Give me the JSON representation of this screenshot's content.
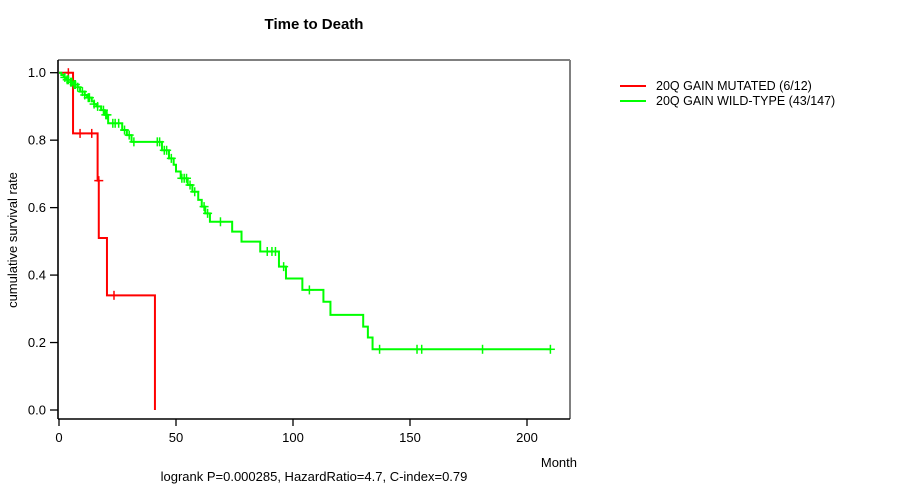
{
  "chart_data": {
    "type": "line",
    "subtype": "kaplan-meier-step-curve",
    "title": "Time to Death",
    "xlabel": "Month",
    "ylabel": "cumulative survival rate",
    "footer": "logrank P=0.000285, HazardRatio=4.7, C-index=0.79",
    "xlim": [
      0,
      218
    ],
    "ylim": [
      0.0,
      1.0
    ],
    "x_ticks": [
      0,
      50,
      100,
      150,
      200
    ],
    "y_ticks": [
      0.0,
      0.2,
      0.4,
      0.6,
      0.8,
      1.0
    ],
    "grid": false,
    "legend_position": "right-outside",
    "frame": {
      "top_right_color": "#808080",
      "bottom_left_color": "#000000"
    },
    "series": [
      {
        "name": "20Q GAIN MUTATED (6/12)",
        "color": "#ff0000",
        "end_month": 41,
        "steps": [
          [
            0,
            1.0
          ],
          [
            6,
            1.0
          ],
          [
            6,
            0.82
          ],
          [
            16.5,
            0.82
          ],
          [
            16.5,
            0.68
          ],
          [
            17,
            0.68
          ],
          [
            17,
            0.51
          ],
          [
            20.5,
            0.51
          ],
          [
            20.5,
            0.34
          ],
          [
            41,
            0.34
          ],
          [
            41,
            0.0
          ]
        ],
        "censors": [
          [
            4,
            1.0
          ],
          [
            9,
            0.82
          ],
          [
            14,
            0.82
          ],
          [
            17,
            0.68
          ],
          [
            23.5,
            0.34
          ]
        ]
      },
      {
        "name": "20Q GAIN WILD-TYPE (43/147)",
        "color": "#00ff00",
        "end_month": 210,
        "steps": [
          [
            0,
            1.0
          ],
          [
            1,
            0.993
          ],
          [
            2,
            0.986
          ],
          [
            3,
            0.979
          ],
          [
            5,
            0.972
          ],
          [
            6,
            0.965
          ],
          [
            8,
            0.957
          ],
          [
            9,
            0.944
          ],
          [
            11,
            0.934
          ],
          [
            12,
            0.926
          ],
          [
            14,
            0.915
          ],
          [
            15,
            0.907
          ],
          [
            16,
            0.9
          ],
          [
            18,
            0.889
          ],
          [
            19.5,
            0.875
          ],
          [
            21,
            0.85
          ],
          [
            27,
            0.83
          ],
          [
            29,
            0.815
          ],
          [
            31,
            0.795
          ],
          [
            44,
            0.77
          ],
          [
            47,
            0.746
          ],
          [
            49,
            0.727
          ],
          [
            50,
            0.707
          ],
          [
            52,
            0.687
          ],
          [
            55,
            0.667
          ],
          [
            57,
            0.647
          ],
          [
            59.5,
            0.623
          ],
          [
            61,
            0.603
          ],
          [
            62.5,
            0.583
          ],
          [
            64.5,
            0.558
          ],
          [
            74,
            0.529
          ],
          [
            78,
            0.499
          ],
          [
            86,
            0.47
          ],
          [
            94,
            0.425
          ],
          [
            97,
            0.39
          ],
          [
            104,
            0.356
          ],
          [
            113,
            0.321
          ],
          [
            116,
            0.282
          ],
          [
            130,
            0.247
          ],
          [
            132,
            0.215
          ],
          [
            134,
            0.18
          ]
        ],
        "censors": [
          [
            2.5,
            0.986
          ],
          [
            3.5,
            0.979
          ],
          [
            4,
            0.979
          ],
          [
            5,
            0.972
          ],
          [
            5.5,
            0.972
          ],
          [
            6.5,
            0.965
          ],
          [
            7,
            0.965
          ],
          [
            8,
            0.957
          ],
          [
            10,
            0.944
          ],
          [
            11,
            0.934
          ],
          [
            12.5,
            0.926
          ],
          [
            13,
            0.926
          ],
          [
            15,
            0.907
          ],
          [
            16.5,
            0.9
          ],
          [
            19,
            0.889
          ],
          [
            20,
            0.875
          ],
          [
            20.5,
            0.875
          ],
          [
            23,
            0.85
          ],
          [
            24,
            0.85
          ],
          [
            25.5,
            0.85
          ],
          [
            28,
            0.83
          ],
          [
            30,
            0.815
          ],
          [
            32,
            0.795
          ],
          [
            42,
            0.795
          ],
          [
            43,
            0.795
          ],
          [
            45,
            0.77
          ],
          [
            46,
            0.77
          ],
          [
            48,
            0.746
          ],
          [
            52.5,
            0.687
          ],
          [
            53.5,
            0.687
          ],
          [
            54.5,
            0.687
          ],
          [
            56,
            0.667
          ],
          [
            58,
            0.647
          ],
          [
            62,
            0.603
          ],
          [
            63.5,
            0.583
          ],
          [
            69,
            0.558
          ],
          [
            89,
            0.47
          ],
          [
            91,
            0.47
          ],
          [
            92.5,
            0.47
          ],
          [
            96,
            0.425
          ],
          [
            107,
            0.356
          ],
          [
            137,
            0.18
          ],
          [
            153,
            0.18
          ],
          [
            155,
            0.18
          ],
          [
            181,
            0.18
          ],
          [
            210,
            0.18
          ]
        ]
      }
    ]
  }
}
